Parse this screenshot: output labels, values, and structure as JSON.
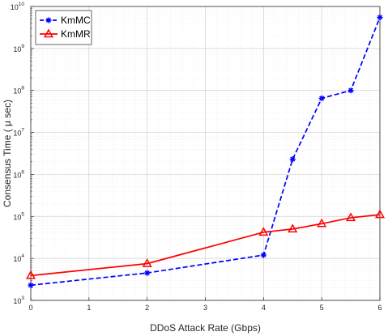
{
  "chart_data": {
    "type": "line",
    "xlabel": "DDoS Attack Rate (Gbps)",
    "ylabel": "Consensus Time ( μ sec)",
    "xlim": [
      0,
      6
    ],
    "ylim": [
      1000,
      10000000000
    ],
    "yscale": "log",
    "grid": true,
    "minor_grid": true,
    "legend_position": "top-left",
    "x_ticks": [
      "0",
      "1",
      "2",
      "3",
      "4",
      "5",
      "6"
    ],
    "y_ticks": [
      {
        "base": "10",
        "exp": "3"
      },
      {
        "base": "10",
        "exp": "4"
      },
      {
        "base": "10",
        "exp": "5"
      },
      {
        "base": "10",
        "exp": "6"
      },
      {
        "base": "10",
        "exp": "7"
      },
      {
        "base": "10",
        "exp": "8"
      },
      {
        "base": "10",
        "exp": "9"
      },
      {
        "base": "10",
        "exp": "10"
      }
    ],
    "series": [
      {
        "name": "KmMC",
        "color": "#0000ff",
        "line_style": "dashed",
        "marker": "asterisk",
        "x": [
          0,
          2,
          4,
          4.5,
          5,
          5.5,
          6
        ],
        "y": [
          2300,
          4500,
          12000,
          2300000,
          65000000,
          100000000,
          5500000000
        ]
      },
      {
        "name": "KmMR",
        "color": "#ff0000",
        "line_style": "solid",
        "marker": "triangle",
        "x": [
          0,
          2,
          4,
          4.5,
          5,
          5.5,
          6
        ],
        "y": [
          3900,
          7500,
          42000,
          50000,
          67000,
          93000,
          110000
        ]
      }
    ]
  }
}
